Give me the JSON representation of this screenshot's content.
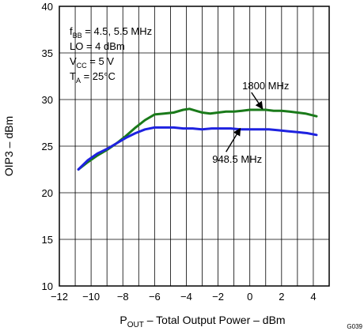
{
  "chart_data": {
    "type": "line",
    "xlabel_main": "P",
    "xlabel_sub": "OUT",
    "xlabel_rest": " – Total Output Power – dBm",
    "ylabel": "OIP3 – dBm",
    "xlim": [
      -12,
      5
    ],
    "ylim": [
      10,
      40
    ],
    "xticks": [
      -12,
      -10,
      -8,
      -6,
      -4,
      -2,
      0,
      2,
      4
    ],
    "xtick_labels": [
      "−12",
      "−10",
      "−8",
      "−6",
      "−4",
      "−2",
      "0",
      "2",
      "4"
    ],
    "yticks": [
      10,
      15,
      20,
      25,
      30,
      35,
      40
    ],
    "ytick_labels": [
      "10",
      "15",
      "20",
      "25",
      "30",
      "35",
      "40"
    ],
    "grid": true,
    "conditions": [
      {
        "main": "f",
        "sub": "BB",
        "rest": " = 4.5, 5.5 MHz"
      },
      {
        "main": "LO = 4 dBm",
        "sub": "",
        "rest": ""
      },
      {
        "main": "V",
        "sub": "CC",
        "rest": " =  5 V"
      },
      {
        "main": "T",
        "sub": "A",
        "rest": " = 25°C"
      }
    ],
    "series": [
      {
        "name": "1800 MHz",
        "color": "#1a7a1a",
        "x": [
          -10.8,
          -10.2,
          -9.6,
          -9.0,
          -8.4,
          -7.8,
          -7.2,
          -6.6,
          -6.0,
          -5.4,
          -4.8,
          -4.2,
          -3.8,
          -3.4,
          -3.0,
          -2.5,
          -2.0,
          -1.5,
          -1.0,
          -0.5,
          0.0,
          0.5,
          1.0,
          1.5,
          2.0,
          2.5,
          3.0,
          3.5,
          4.2
        ],
        "y": [
          22.5,
          23.3,
          24.0,
          24.6,
          25.3,
          26.1,
          27.0,
          27.8,
          28.4,
          28.5,
          28.6,
          28.9,
          29.0,
          28.8,
          28.6,
          28.5,
          28.6,
          28.7,
          28.7,
          28.8,
          28.9,
          28.9,
          28.9,
          28.8,
          28.8,
          28.7,
          28.6,
          28.5,
          28.2
        ]
      },
      {
        "name": "948.5 MHz",
        "color": "#1e22e0",
        "x": [
          -10.8,
          -10.2,
          -9.6,
          -9.0,
          -8.4,
          -7.8,
          -7.2,
          -6.6,
          -6.0,
          -5.4,
          -4.8,
          -4.2,
          -3.6,
          -3.0,
          -2.4,
          -1.8,
          -1.2,
          -0.6,
          0.0,
          0.6,
          1.2,
          1.8,
          2.4,
          3.0,
          3.6,
          4.2
        ],
        "y": [
          22.5,
          23.5,
          24.2,
          24.7,
          25.3,
          25.9,
          26.4,
          26.8,
          27.0,
          27.0,
          27.0,
          26.9,
          26.9,
          26.8,
          26.9,
          26.9,
          26.9,
          26.8,
          26.8,
          26.8,
          26.8,
          26.7,
          26.6,
          26.5,
          26.4,
          26.2
        ]
      }
    ],
    "annotations": [
      {
        "text": "1800 MHz",
        "series": 0,
        "x": 1.0,
        "y": 31.1,
        "arrow_to": [
          0.8,
          29.0
        ]
      },
      {
        "text": "948.5 MHz",
        "series": 1,
        "x": -0.8,
        "y": 23.2,
        "arrow_to": [
          -0.6,
          26.9
        ]
      }
    ],
    "figure_code": "G039"
  }
}
